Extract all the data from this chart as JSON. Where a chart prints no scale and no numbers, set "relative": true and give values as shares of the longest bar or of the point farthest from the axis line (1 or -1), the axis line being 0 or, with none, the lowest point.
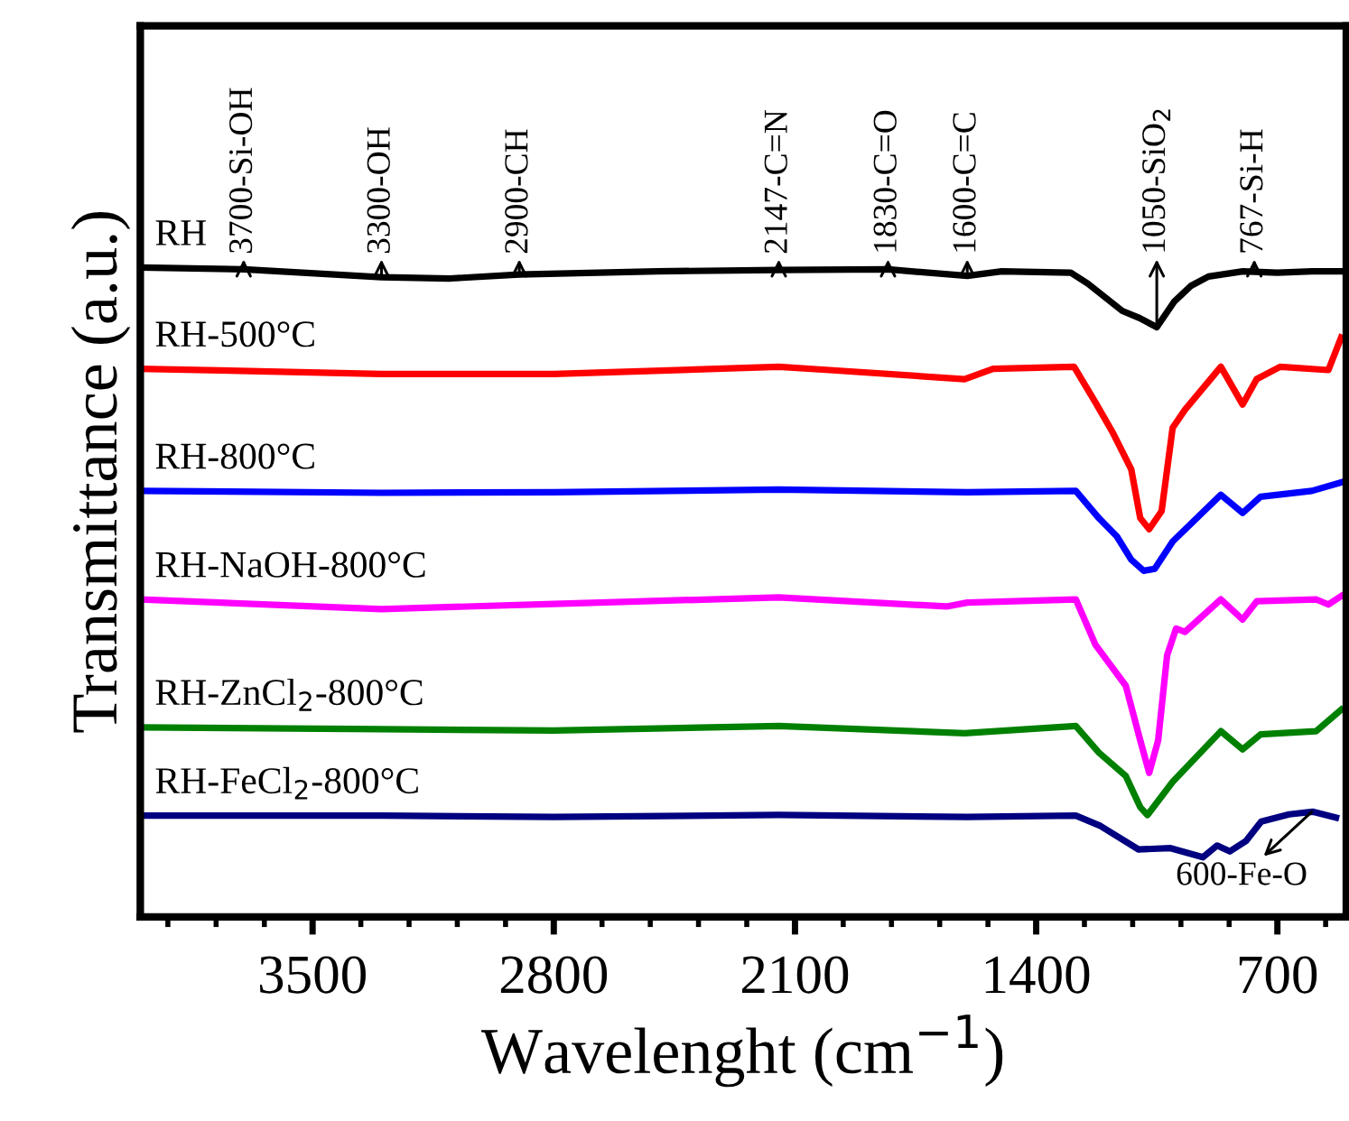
{
  "chart_data": {
    "type": "line",
    "relative": true,
    "xlabel": "Wavelenght (cm$^{−1}$)",
    "ylabel": "Transmittance (a.u.)",
    "xlim": [
      4000,
      500
    ],
    "xticks": [
      3500,
      2800,
      2100,
      1400,
      700
    ],
    "grid": false,
    "legend": false,
    "marker": "none",
    "line_style": "solid",
    "tick_labels": "x",
    "series": [
      {
        "name": "RH",
        "color": "#000000",
        "x": [
          4000,
          3700,
          3300,
          3100,
          2900,
          2500,
          2147,
          1830,
          1600,
          1500,
          1300,
          1250,
          1150,
          1100,
          1050,
          1000,
          950,
          900,
          800,
          700,
          600,
          515
        ],
        "values": [
          1.0,
          0.997,
          0.985,
          0.983,
          0.989,
          0.994,
          0.996,
          0.997,
          0.987,
          0.994,
          0.992,
          0.975,
          0.933,
          0.922,
          0.908,
          0.947,
          0.972,
          0.986,
          0.994,
          0.992,
          0.994,
          0.994
        ]
      },
      {
        "name": "RH-500°C",
        "color": "#ff0000",
        "x": [
          4000,
          3300,
          2800,
          2147,
          2000,
          1608,
          1525,
          1290,
          1228,
          1176,
          1124,
          1098,
          1072,
          1036,
          1004,
          968,
          864,
          801,
          760,
          692,
          552,
          515
        ],
        "values": [
          0.844,
          0.836,
          0.836,
          0.847,
          0.842,
          0.828,
          0.844,
          0.847,
          0.792,
          0.744,
          0.689,
          0.614,
          0.597,
          0.625,
          0.753,
          0.781,
          0.847,
          0.789,
          0.828,
          0.847,
          0.842,
          0.892
        ]
      },
      {
        "name": "RH-800°C",
        "color": "#0000ff",
        "x": [
          4000,
          3300,
          2800,
          2147,
          1600,
          1285,
          1218,
          1166,
          1124,
          1088,
          1056,
          1004,
          864,
          801,
          749,
          600,
          515
        ],
        "values": [
          0.656,
          0.653,
          0.654,
          0.658,
          0.654,
          0.656,
          0.614,
          0.586,
          0.55,
          0.533,
          0.536,
          0.578,
          0.65,
          0.622,
          0.647,
          0.656,
          0.669
        ]
      },
      {
        "name": "RH-NaOH-800°C",
        "color": "#ff00ff",
        "x": [
          4000,
          3300,
          2800,
          2147,
          1660,
          1600,
          1285,
          1228,
          1140,
          1098,
          1072,
          1046,
          1020,
          994,
          968,
          864,
          801,
          760,
          588,
          552,
          515
        ],
        "values": [
          0.489,
          0.474,
          0.482,
          0.492,
          0.478,
          0.484,
          0.489,
          0.419,
          0.356,
          0.272,
          0.222,
          0.272,
          0.403,
          0.444,
          0.439,
          0.489,
          0.458,
          0.486,
          0.489,
          0.481,
          0.494
        ]
      },
      {
        "name": "RH-ZnCl$_{2}$-800°C",
        "color": "#008000",
        "x": [
          4000,
          3300,
          2800,
          2147,
          1608,
          1285,
          1218,
          1140,
          1098,
          1077,
          1004,
          864,
          801,
          749,
          588,
          515
        ],
        "values": [
          0.292,
          0.289,
          0.287,
          0.294,
          0.283,
          0.294,
          0.253,
          0.217,
          0.169,
          0.157,
          0.208,
          0.286,
          0.258,
          0.281,
          0.286,
          0.319
        ]
      },
      {
        "name": "RH-FeCl$_{2}$-800°C",
        "color": "#000080",
        "x": [
          4000,
          3300,
          2800,
          2147,
          1600,
          1285,
          1213,
          1103,
          1010,
          916,
          875,
          838,
          791,
          747,
          666,
          598,
          530
        ],
        "values": [
          0.156,
          0.156,
          0.154,
          0.157,
          0.154,
          0.156,
          0.14,
          0.104,
          0.106,
          0.092,
          0.11,
          0.101,
          0.117,
          0.147,
          0.158,
          0.162,
          0.153
        ]
      }
    ],
    "annotations": [
      {
        "text": "3700-Si-OH",
        "x": 3700,
        "y": 0.997
      },
      {
        "text": "3300-OH",
        "x": 3300,
        "y": 0.985
      },
      {
        "text": "2900-CH",
        "x": 2900,
        "y": 0.989
      },
      {
        "text": "2147-C=N",
        "x": 2147,
        "y": 0.996
      },
      {
        "text": "1830-C=O",
        "x": 1830,
        "y": 0.997
      },
      {
        "text": "1600-C=C",
        "x": 1600,
        "y": 0.987
      },
      {
        "text": "1050-SiO$_{2}$",
        "x": 1050,
        "y": 0.908
      },
      {
        "text": "767-Si-H",
        "x": 767,
        "y": 0.994
      },
      {
        "text": "600-Fe-O",
        "x": 600,
        "y": 0.162
      }
    ]
  }
}
